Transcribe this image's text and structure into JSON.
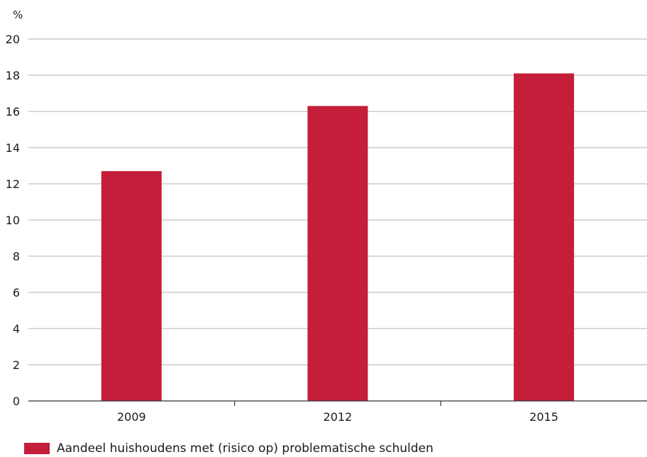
{
  "chart_data": {
    "type": "bar",
    "unit_label": "%",
    "categories": [
      "2009",
      "2012",
      "2015"
    ],
    "series": [
      {
        "name": "Aandeel huishoudens met (risico op) problematische schulden",
        "values": [
          12.7,
          16.3,
          18.1
        ],
        "color": "#c41e3a"
      }
    ],
    "ylim": [
      0,
      20
    ],
    "yticks": [
      0,
      2,
      4,
      6,
      8,
      10,
      12,
      14,
      16,
      18,
      20
    ],
    "grid": true,
    "legend_position": "bottom-left",
    "colors": {
      "bar": "#c41e3a",
      "grid": "#b3b3b3",
      "axis": "#333333",
      "text": "#1a1a1a"
    }
  }
}
